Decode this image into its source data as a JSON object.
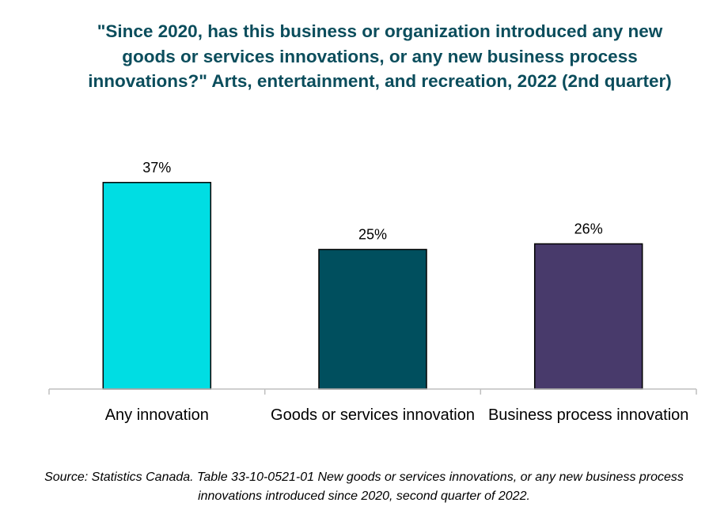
{
  "chart_data": {
    "type": "bar",
    "title": "\"Since 2020, has this business or organization introduced any new goods or services innovations, or any new business process innovations?\" Arts, entertainment, and recreation, 2022 (2nd quarter)",
    "categories": [
      "Any innovation",
      "Goods or services innovation",
      "Business process innovation"
    ],
    "values": [
      37,
      25,
      26
    ],
    "value_labels": [
      "37%",
      "25%",
      "26%"
    ],
    "colors": [
      "#00dde3",
      "#004f5e",
      "#483a6b"
    ],
    "unit": "%",
    "xlabel": "",
    "ylabel": "",
    "ylim": [
      0,
      40
    ],
    "grid": false,
    "legend": "none"
  },
  "source": "Source: Statistics Canada. Table 33-10-0521-01  New goods or services innovations, or any new business process innovations introduced since 2020, second quarter of 2022."
}
